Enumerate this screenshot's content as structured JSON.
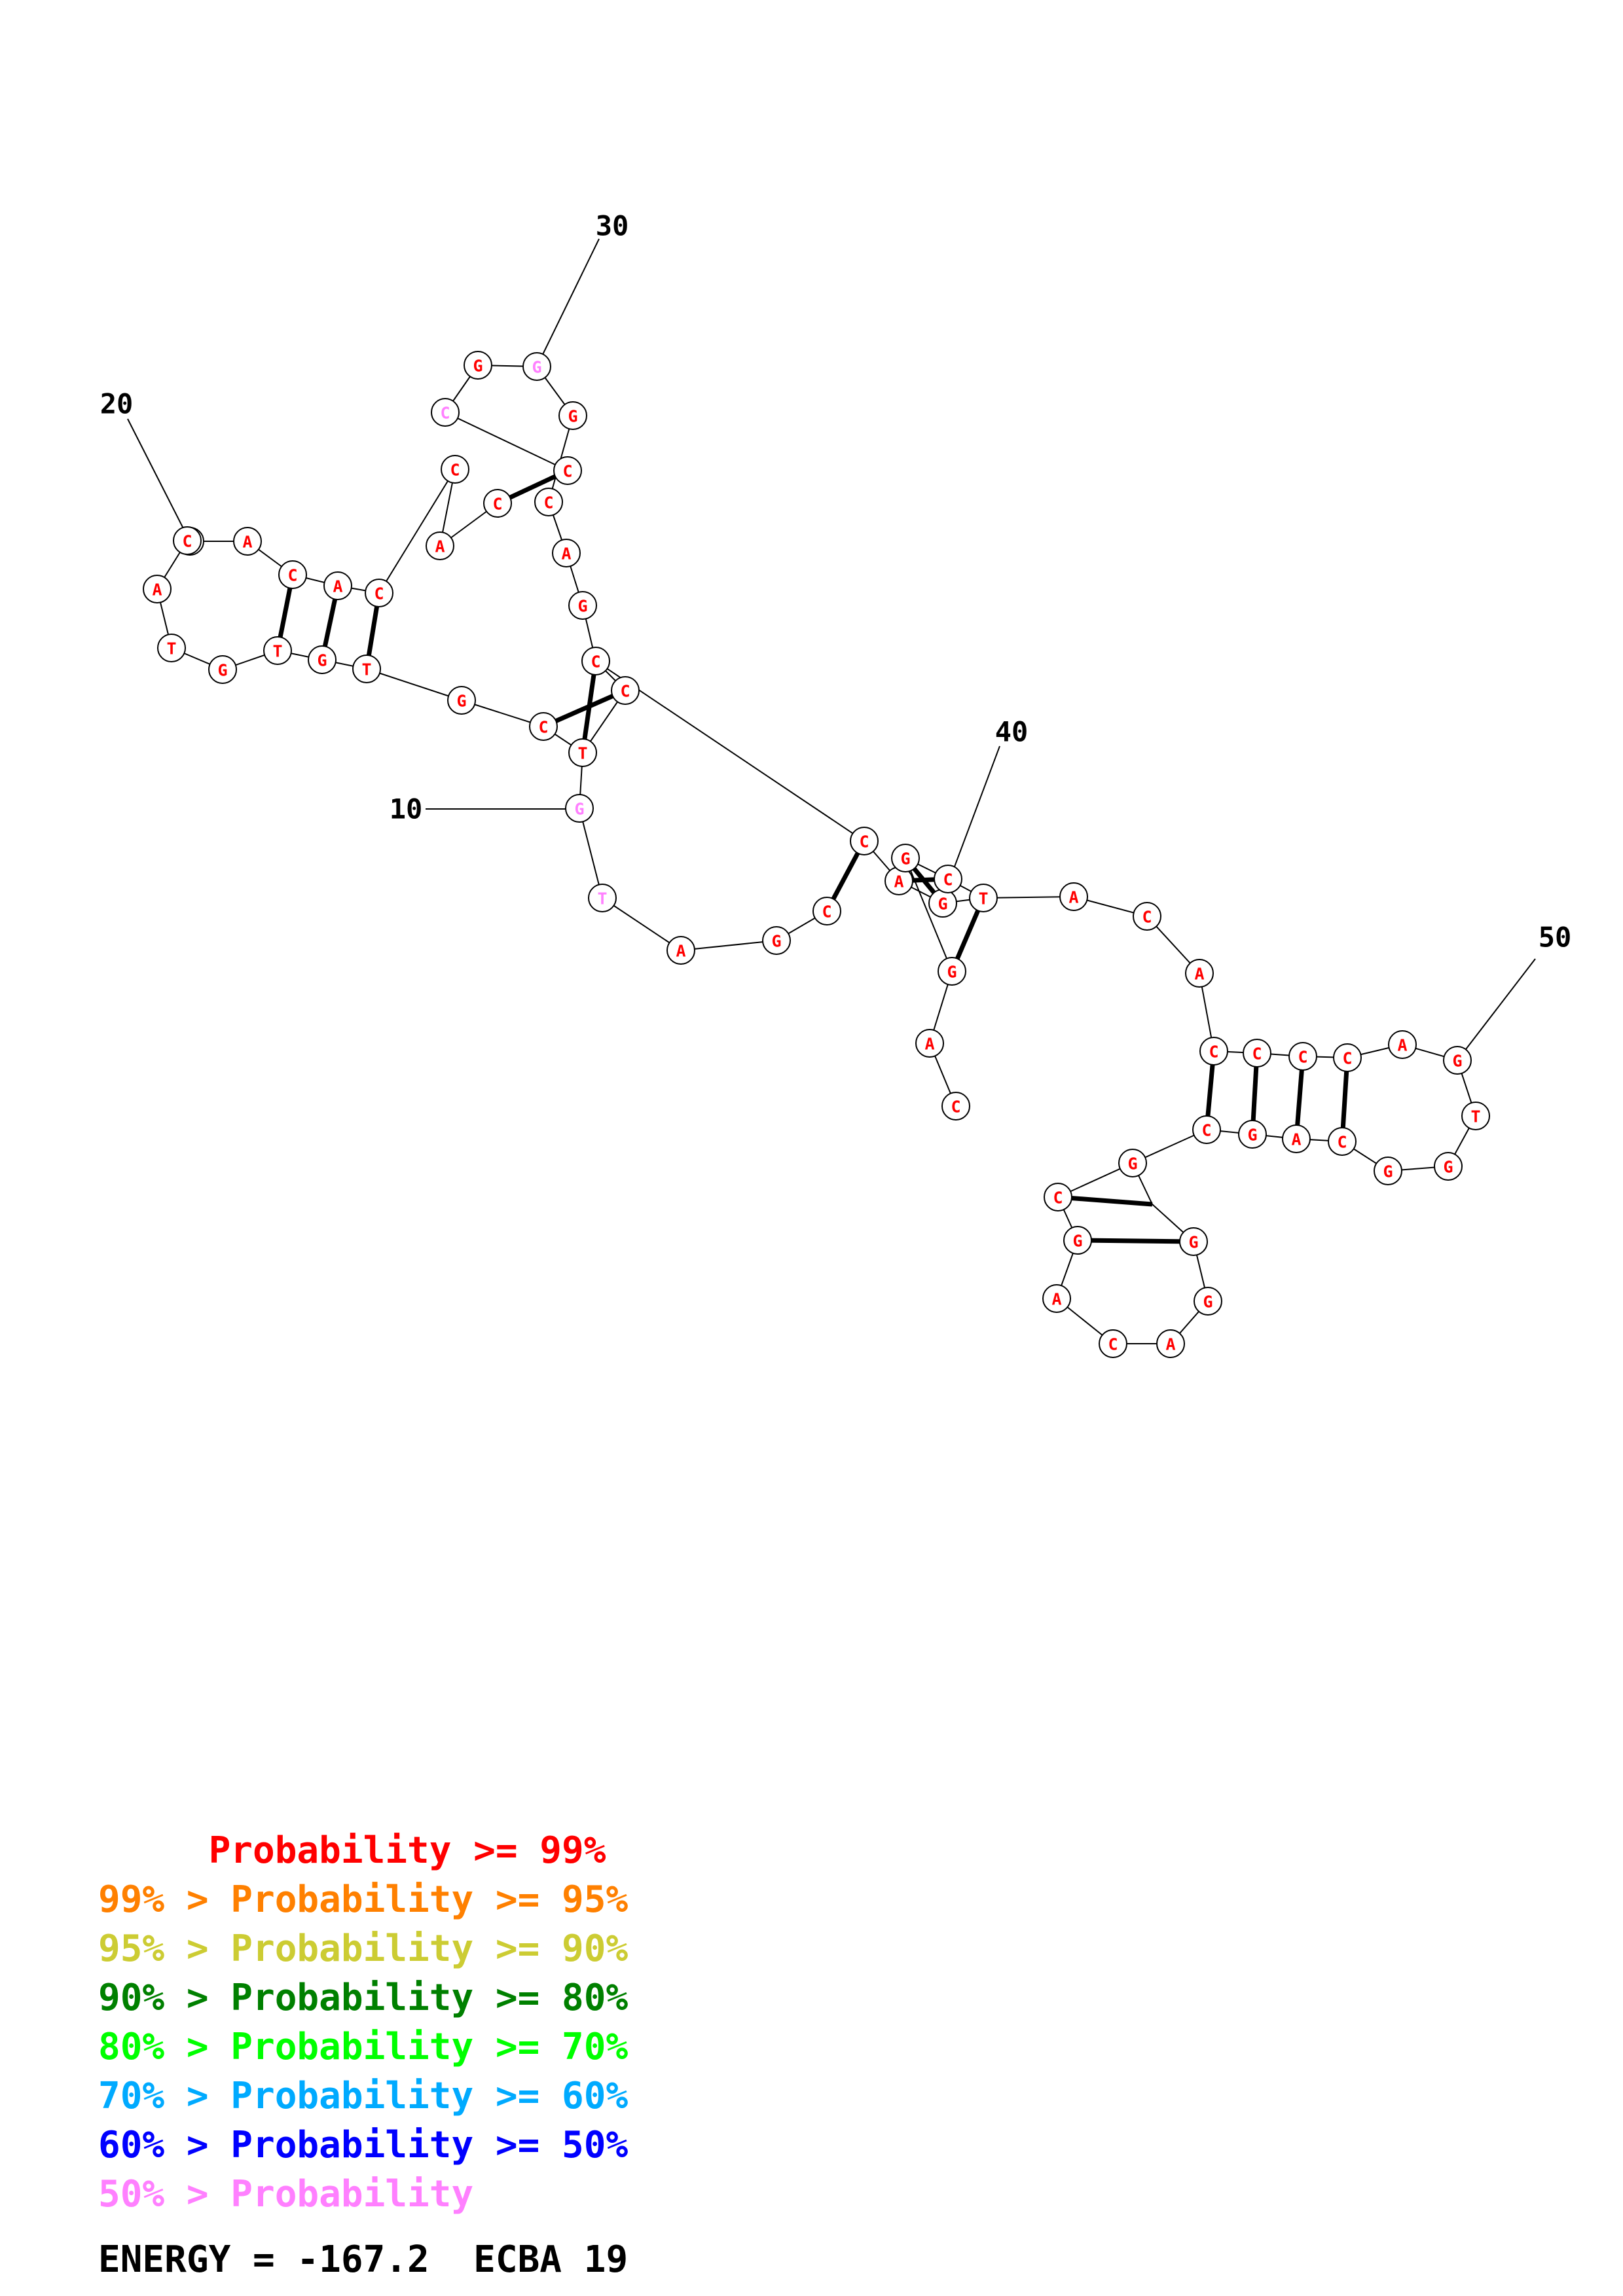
{
  "sequence_labels": [
    "20",
    "30",
    "10",
    "40",
    "50"
  ],
  "nucleotides": [
    "C",
    "A",
    "C",
    "A",
    "C",
    "C",
    "A",
    "T",
    "G",
    "T",
    "G",
    "T",
    "G",
    "C",
    "T",
    "C",
    "C",
    "G",
    "A",
    "C",
    "C",
    "C",
    "A",
    "C",
    "C",
    "G",
    "G",
    "G",
    "G",
    "T",
    "A",
    "G",
    "C",
    "C",
    "A",
    "G",
    "T",
    "C",
    "G",
    "G",
    "A",
    "C",
    "A",
    "C",
    "A",
    "C",
    "C",
    "C",
    "C",
    "A",
    "G",
    "T",
    "G",
    "G",
    "C",
    "A",
    "G",
    "C",
    "G",
    "C",
    "G",
    "A",
    "C",
    "A",
    "G",
    "G"
  ],
  "nucleotide_colors": {
    "default": "#ff0000",
    "low_probability": "#ff80ff"
  },
  "low_probability_bases": [
    24,
    26,
    28,
    29
  ],
  "legend": [
    {
      "text": "     Probability >= 99%",
      "color": "#ff0000"
    },
    {
      "text": "99% > Probability >= 95%",
      "color": "#ff8000"
    },
    {
      "text": "95% > Probability >= 90%",
      "color": "#cccc33"
    },
    {
      "text": "90% > Probability >= 80%",
      "color": "#008000"
    },
    {
      "text": "80% > Probability >= 70%",
      "color": "#00ff00"
    },
    {
      "text": "70% > Probability >= 60%",
      "color": "#00aaff"
    },
    {
      "text": "60% > Probability >= 50%",
      "color": "#0000ff"
    },
    {
      "text": "50% > Probability",
      "color": "#ff80ff"
    }
  ],
  "energy": "ENERGY = -167.2  ECBA 19"
}
